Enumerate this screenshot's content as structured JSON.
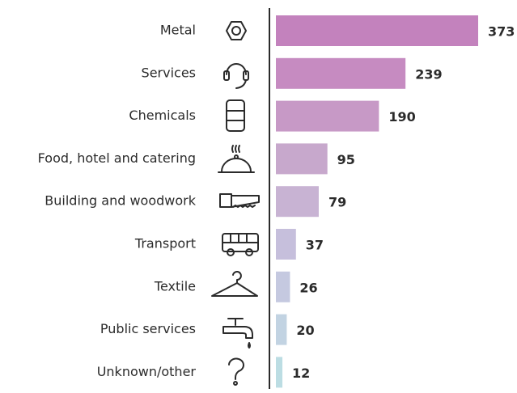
{
  "chart_data": {
    "type": "hbar",
    "categories": [
      "Metal",
      "Services",
      "Chemicals",
      "Food, hotel and catering",
      "Building and woodwork",
      "Transport",
      "Textile",
      "Public services",
      "Unknown/other"
    ],
    "values": [
      373,
      239,
      190,
      95,
      79,
      37,
      26,
      20,
      12
    ],
    "colors": [
      "#c382bd",
      "#c68bc1",
      "#c799c6",
      "#c7a8cc",
      "#c8b3d3",
      "#c6bfdc",
      "#c5c9e0",
      "#c2d3e2",
      "#bcdde3"
    ],
    "xlim": [
      0,
      373
    ]
  }
}
